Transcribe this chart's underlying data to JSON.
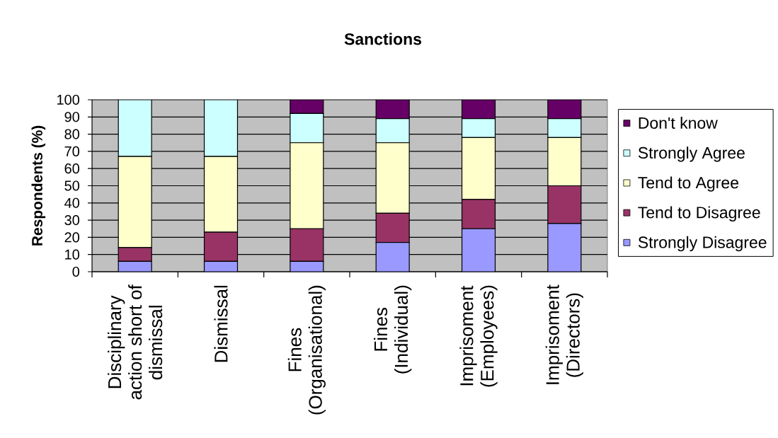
{
  "chart_data": {
    "type": "bar",
    "stacked": true,
    "title": "Sanctions",
    "ylabel": "Respondents (%)",
    "categories": [
      "Disciplinary action short of dismissal",
      "Dismissal",
      "Fines (Organisational)",
      "Fines (Individual)",
      "Imprisoment (Employees)",
      "Imprisoment (Directors)"
    ],
    "series": [
      {
        "name": "Strongly Disagree",
        "color": "#9999ff",
        "values": [
          6,
          6,
          6,
          17,
          25,
          28
        ]
      },
      {
        "name": "Tend to Disagree",
        "color": "#993366",
        "values": [
          8,
          17,
          19,
          17,
          17,
          22
        ]
      },
      {
        "name": "Tend to Agree",
        "color": "#ffffcc",
        "values": [
          53,
          44,
          50,
          41,
          36,
          28
        ]
      },
      {
        "name": "Strongly Agree",
        "color": "#ccffff",
        "values": [
          33,
          33,
          17,
          14,
          11,
          11
        ]
      },
      {
        "name": "Don't know",
        "color": "#660066",
        "values": [
          0,
          0,
          8,
          11,
          11,
          11
        ]
      }
    ],
    "ylim": [
      0,
      100
    ],
    "yticks": [
      0,
      10,
      20,
      30,
      40,
      50,
      60,
      70,
      80,
      90,
      100
    ],
    "grid": "y",
    "legend": "right"
  }
}
